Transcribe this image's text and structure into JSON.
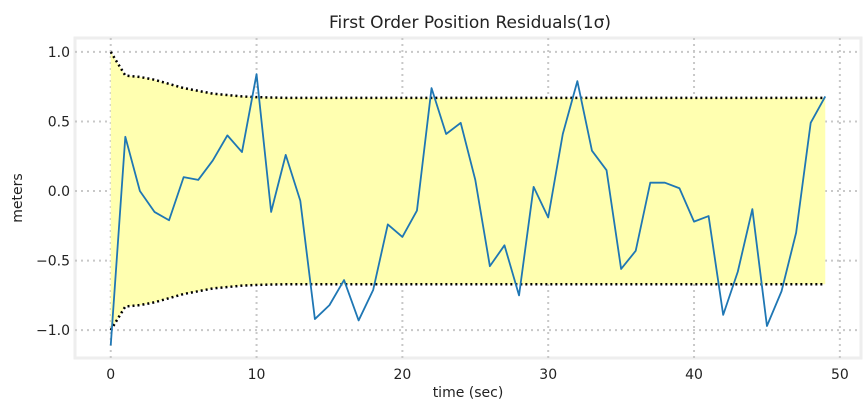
{
  "chart_data": {
    "type": "line",
    "title": "First Order Position Residuals(1σ)",
    "xlabel": "time (sec)",
    "ylabel": "meters",
    "xlim": [
      -2.45,
      51.45
    ],
    "ylim": [
      -1.2,
      1.1
    ],
    "xticks": [
      0,
      10,
      20,
      30,
      40,
      50
    ],
    "xtick_labels": [
      "0",
      "10",
      "20",
      "30",
      "40",
      "50"
    ],
    "yticks": [
      1.0,
      0.5,
      0.0,
      -0.5,
      -1.0
    ],
    "ytick_labels": [
      "1.0",
      "0.5",
      "0.0",
      "−0.5",
      "−1.0"
    ],
    "grid": true,
    "x": [
      0,
      1,
      2,
      3,
      4,
      5,
      6,
      7,
      8,
      9,
      10,
      11,
      12,
      13,
      14,
      15,
      16,
      17,
      18,
      19,
      20,
      21,
      22,
      23,
      24,
      25,
      26,
      27,
      28,
      29,
      30,
      31,
      32,
      33,
      34,
      35,
      36,
      37,
      38,
      39,
      40,
      41,
      42,
      43,
      44,
      45,
      46,
      47,
      48,
      49
    ],
    "series": [
      {
        "role": "residual",
        "color": "#1f77b4",
        "values": [
          -1.11,
          0.39,
          0.0,
          -0.15,
          -0.21,
          0.1,
          0.08,
          0.22,
          0.4,
          0.28,
          0.84,
          -0.15,
          0.26,
          -0.07,
          -0.92,
          -0.82,
          -0.64,
          -0.93,
          -0.71,
          -0.24,
          -0.33,
          -0.14,
          0.74,
          0.41,
          0.49,
          0.08,
          -0.54,
          -0.39,
          -0.75,
          0.03,
          -0.19,
          0.41,
          0.79,
          0.29,
          0.15,
          -0.56,
          -0.43,
          0.06,
          0.06,
          0.02,
          -0.22,
          -0.18,
          -0.89,
          -0.58,
          -0.13,
          -0.97,
          -0.72,
          -0.3,
          0.49,
          0.68
        ]
      },
      {
        "role": "upper-bound",
        "style": "dotted",
        "color": "#000000",
        "values": [
          1.0,
          0.83,
          0.82,
          0.8,
          0.77,
          0.74,
          0.72,
          0.7,
          0.69,
          0.68,
          0.675,
          0.672,
          0.67,
          0.67,
          0.67,
          0.67,
          0.67,
          0.67,
          0.67,
          0.67,
          0.67,
          0.67,
          0.67,
          0.67,
          0.67,
          0.67,
          0.67,
          0.67,
          0.67,
          0.67,
          0.67,
          0.67,
          0.67,
          0.67,
          0.67,
          0.67,
          0.67,
          0.67,
          0.67,
          0.67,
          0.67,
          0.67,
          0.67,
          0.67,
          0.67,
          0.67,
          0.67,
          0.67,
          0.67,
          0.67
        ]
      },
      {
        "role": "lower-bound",
        "style": "dotted",
        "color": "#000000",
        "values": [
          -1.0,
          -0.83,
          -0.82,
          -0.8,
          -0.77,
          -0.74,
          -0.72,
          -0.7,
          -0.69,
          -0.68,
          -0.675,
          -0.672,
          -0.67,
          -0.67,
          -0.67,
          -0.67,
          -0.67,
          -0.67,
          -0.67,
          -0.67,
          -0.67,
          -0.67,
          -0.67,
          -0.67,
          -0.67,
          -0.67,
          -0.67,
          -0.67,
          -0.67,
          -0.67,
          -0.67,
          -0.67,
          -0.67,
          -0.67,
          -0.67,
          -0.67,
          -0.67,
          -0.67,
          -0.67,
          -0.67,
          -0.67,
          -0.67,
          -0.67,
          -0.67,
          -0.67,
          -0.67,
          -0.67,
          -0.67,
          -0.67,
          -0.67
        ]
      }
    ],
    "fill_between": {
      "color": "#ffffb0",
      "upper": "upper-bound",
      "lower": "lower-bound"
    },
    "frame_color": "#eeeeee",
    "grid_color": "#c8c8c8"
  }
}
